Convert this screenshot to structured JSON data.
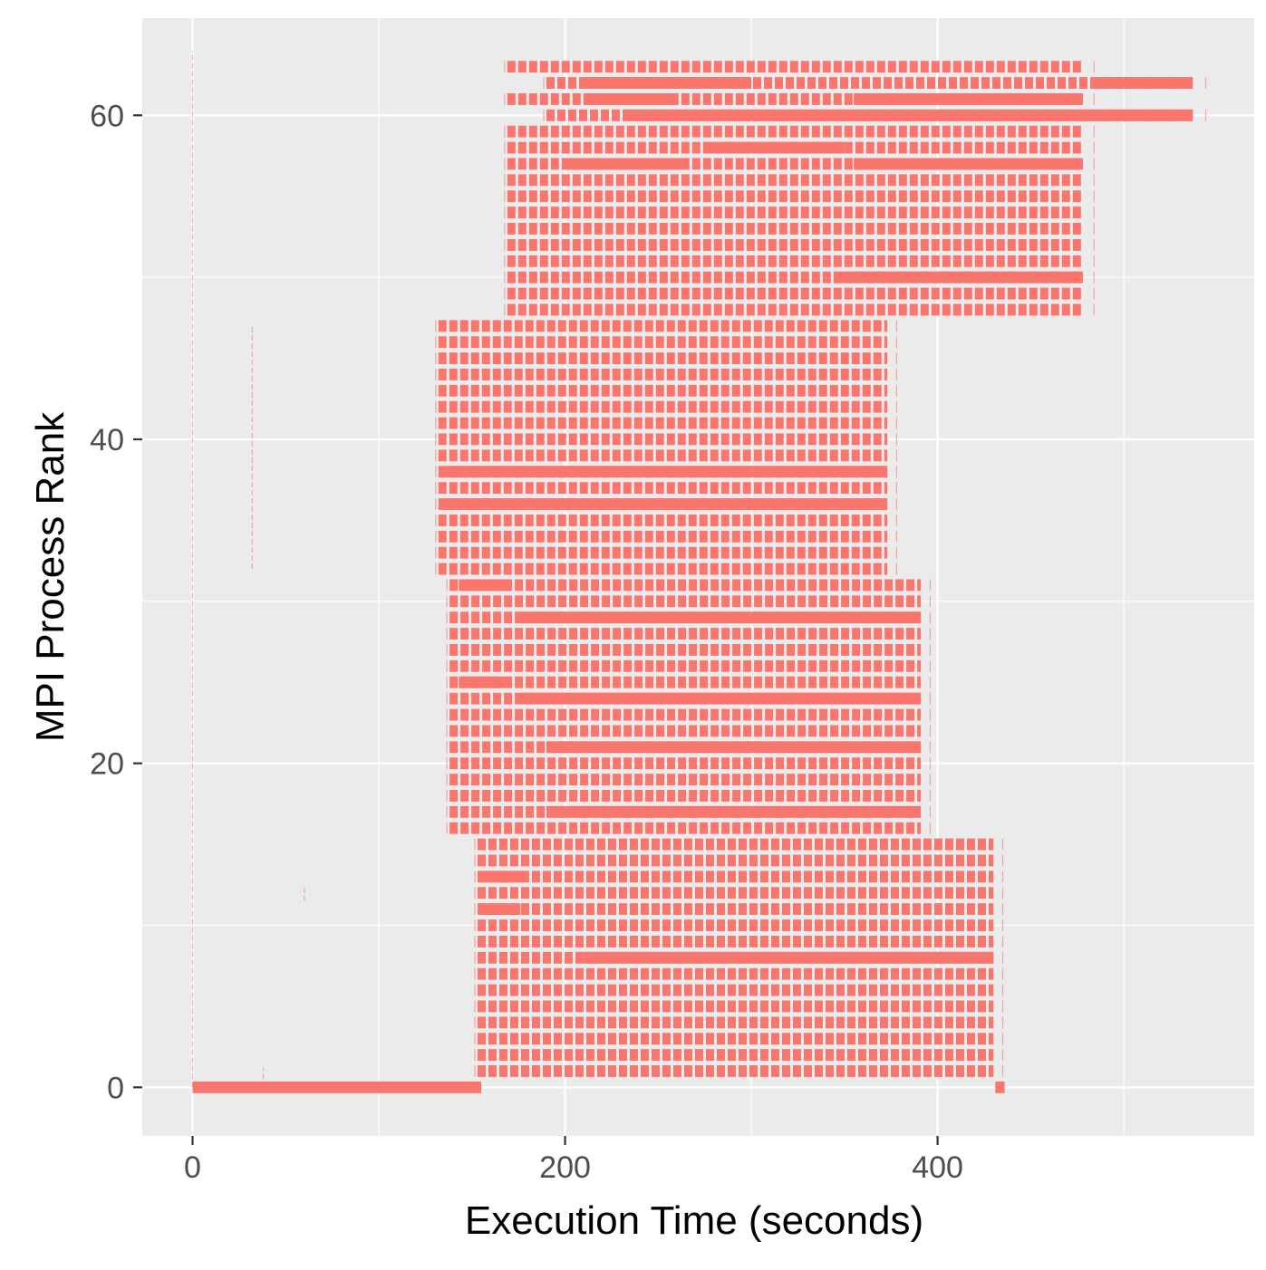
{
  "chart_data": {
    "type": "timeline",
    "title": "",
    "xlabel": "Execution Time (seconds)",
    "ylabel": "MPI Process Rank",
    "xlim": [
      -27,
      570
    ],
    "ylim": [
      -3,
      66
    ],
    "x_ticks": [
      0,
      200,
      400
    ],
    "x_minor_ticks": [
      100,
      300,
      500
    ],
    "y_ticks": [
      0,
      20,
      40,
      60
    ],
    "y_minor_ticks": [
      10,
      30,
      50
    ],
    "x_tick_labels": [
      "0",
      "200",
      "400"
    ],
    "y_tick_labels": [
      "0",
      "20",
      "40",
      "60"
    ],
    "grid": true,
    "legend": "none",
    "colors": {
      "bar": "#F8766D",
      "panel": "#EBEBEB",
      "grid": "#FFFFFF"
    },
    "groups": [
      {
        "ranks": [
          1,
          15
        ],
        "start": 153,
        "end": 430,
        "tail_end": 435
      },
      {
        "ranks": [
          16,
          31
        ],
        "start": 138,
        "end": 391,
        "tail_end": 396
      },
      {
        "ranks": [
          32,
          47
        ],
        "start": 132,
        "end": 373,
        "tail_end": 378
      },
      {
        "ranks": [
          48,
          63
        ],
        "start": 169,
        "end": 478,
        "tail_end": 484
      }
    ],
    "solid_segments": [
      {
        "rank": 0,
        "start": 0,
        "end": 155
      },
      {
        "rank": 0,
        "start": 431,
        "end": 436
      },
      {
        "rank": 8,
        "start": 210,
        "end": 430
      },
      {
        "rank": 11,
        "start": 155,
        "end": 176
      },
      {
        "rank": 13,
        "start": 155,
        "end": 178
      },
      {
        "rank": 17,
        "start": 190,
        "end": 391
      },
      {
        "rank": 21,
        "start": 190,
        "end": 391
      },
      {
        "rank": 24,
        "start": 176,
        "end": 391
      },
      {
        "rank": 25,
        "start": 143,
        "end": 168
      },
      {
        "rank": 29,
        "start": 176,
        "end": 391
      },
      {
        "rank": 31,
        "start": 143,
        "end": 168
      },
      {
        "rank": 36,
        "start": 136,
        "end": 373
      },
      {
        "rank": 38,
        "start": 136,
        "end": 373
      },
      {
        "rank": 50,
        "start": 345,
        "end": 478
      },
      {
        "rank": 57,
        "start": 200,
        "end": 265
      },
      {
        "rank": 57,
        "start": 355,
        "end": 478
      },
      {
        "rank": 58,
        "start": 275,
        "end": 350
      },
      {
        "rank": 60,
        "start": 233,
        "end": 537
      },
      {
        "rank": 61,
        "start": 210,
        "end": 260
      },
      {
        "rank": 61,
        "start": 355,
        "end": 478
      },
      {
        "rank": 62,
        "start": 485,
        "end": 537
      },
      {
        "rank": 62,
        "start": 210,
        "end": 300
      }
    ],
    "extended_ranks": [
      {
        "rank": 62,
        "start": 190,
        "end": 537,
        "tail_end": 544
      },
      {
        "rank": 60,
        "start": 190,
        "end": 537,
        "tail_end": 544
      }
    ],
    "faint_lines": [
      {
        "x": 0,
        "rank_from": 0,
        "rank_to": 64
      },
      {
        "x": 32,
        "rank_from": 32,
        "rank_to": 47
      },
      {
        "x": 60,
        "rank_from": 11.5,
        "rank_to": 12.5
      },
      {
        "x": 38,
        "rank_from": 0,
        "rank_to": 1.2
      }
    ]
  }
}
